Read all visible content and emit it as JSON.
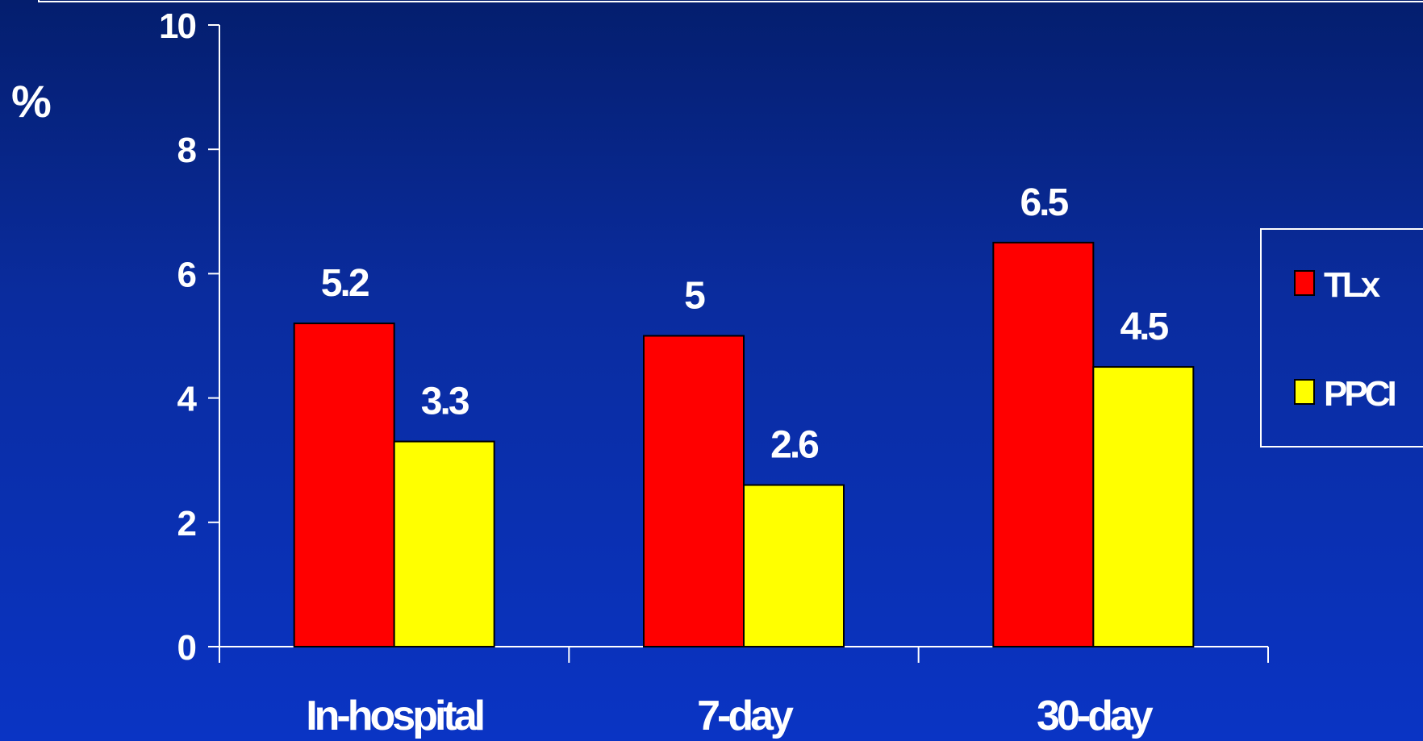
{
  "chart_data": {
    "type": "bar",
    "categories": [
      "In-hospital",
      "7-day",
      "30-day"
    ],
    "series": [
      {
        "name": "TLx",
        "values": [
          5.2,
          5,
          6.5
        ],
        "color": "#ff0000"
      },
      {
        "name": "PPCI",
        "values": [
          3.3,
          2.6,
          4.5
        ],
        "color": "#ffff00"
      }
    ],
    "data_labels": [
      [
        "5.2",
        "5",
        "6.5"
      ],
      [
        "3.3",
        "2.6",
        "4.5"
      ]
    ],
    "ylabel": "%",
    "ylim": [
      0,
      10
    ],
    "yticks": [
      "0",
      "2",
      "4",
      "6",
      "8",
      "10"
    ],
    "grid": false,
    "legend_position": "right",
    "colors": {
      "axis": "#ffffff",
      "text": "#ffffff",
      "bar_outline": "#000000"
    }
  }
}
